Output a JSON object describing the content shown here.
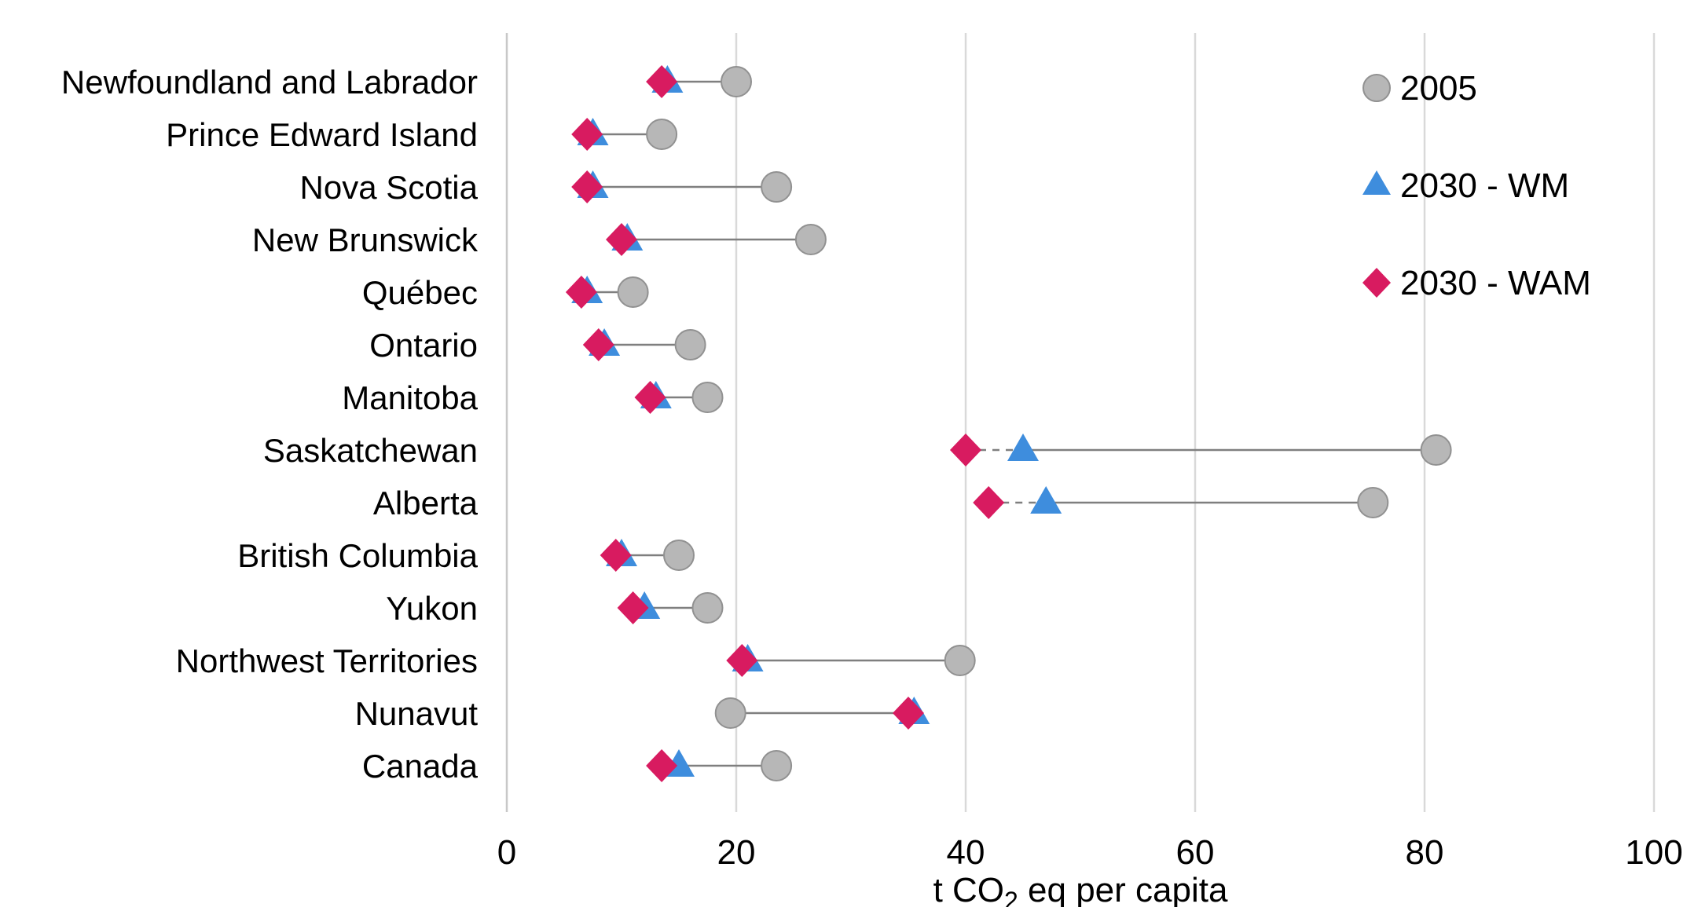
{
  "colors": {
    "grid": "#d9d9d9",
    "axis_line": "#c8c8c8",
    "connector": "#7f7f7f",
    "circle_fill": "#b7b7b7",
    "circle_stroke": "#919191",
    "triangle_fill": "#3e8ddd",
    "diamond_fill": "#d81b60",
    "text": "#000000"
  },
  "chart_data": {
    "type": "scatter",
    "subtype": "horizontal-dot-plot-dumbbell",
    "title": "",
    "xlabel": "t CO2 eq per capita",
    "xlabel_parts": {
      "prefix": "t CO",
      "sub": "2",
      "suffix": " eq per capita"
    },
    "ylabel": "",
    "xlim": [
      0,
      100
    ],
    "xticks": [
      0,
      20,
      40,
      60,
      80,
      100
    ],
    "grid": "vertical",
    "legend_position": "top-right",
    "categories": [
      "Newfoundland and Labrador",
      "Prince Edward Island",
      "Nova Scotia",
      "New Brunswick",
      "Québec",
      "Ontario",
      "Manitoba",
      "Saskatchewan",
      "Alberta",
      "British Columbia",
      "Yukon",
      "Northwest Territories",
      "Nunavut",
      "Canada"
    ],
    "series": [
      {
        "name": "2005",
        "marker": "circle",
        "values": [
          20,
          13.5,
          23.5,
          26.5,
          11,
          16,
          17.5,
          81,
          75.5,
          15,
          17.5,
          39.5,
          19.5,
          23.5
        ]
      },
      {
        "name": "2030 - WM",
        "marker": "triangle",
        "values": [
          14,
          7.5,
          7.5,
          10.5,
          7,
          8.5,
          13,
          45,
          47,
          10,
          12,
          21,
          35.5,
          15
        ]
      },
      {
        "name": "2030 - WAM",
        "marker": "diamond",
        "values": [
          13.5,
          7,
          7,
          10,
          6.5,
          8,
          12.5,
          40,
          42,
          9.5,
          11,
          20.5,
          35,
          13.5
        ]
      }
    ]
  }
}
